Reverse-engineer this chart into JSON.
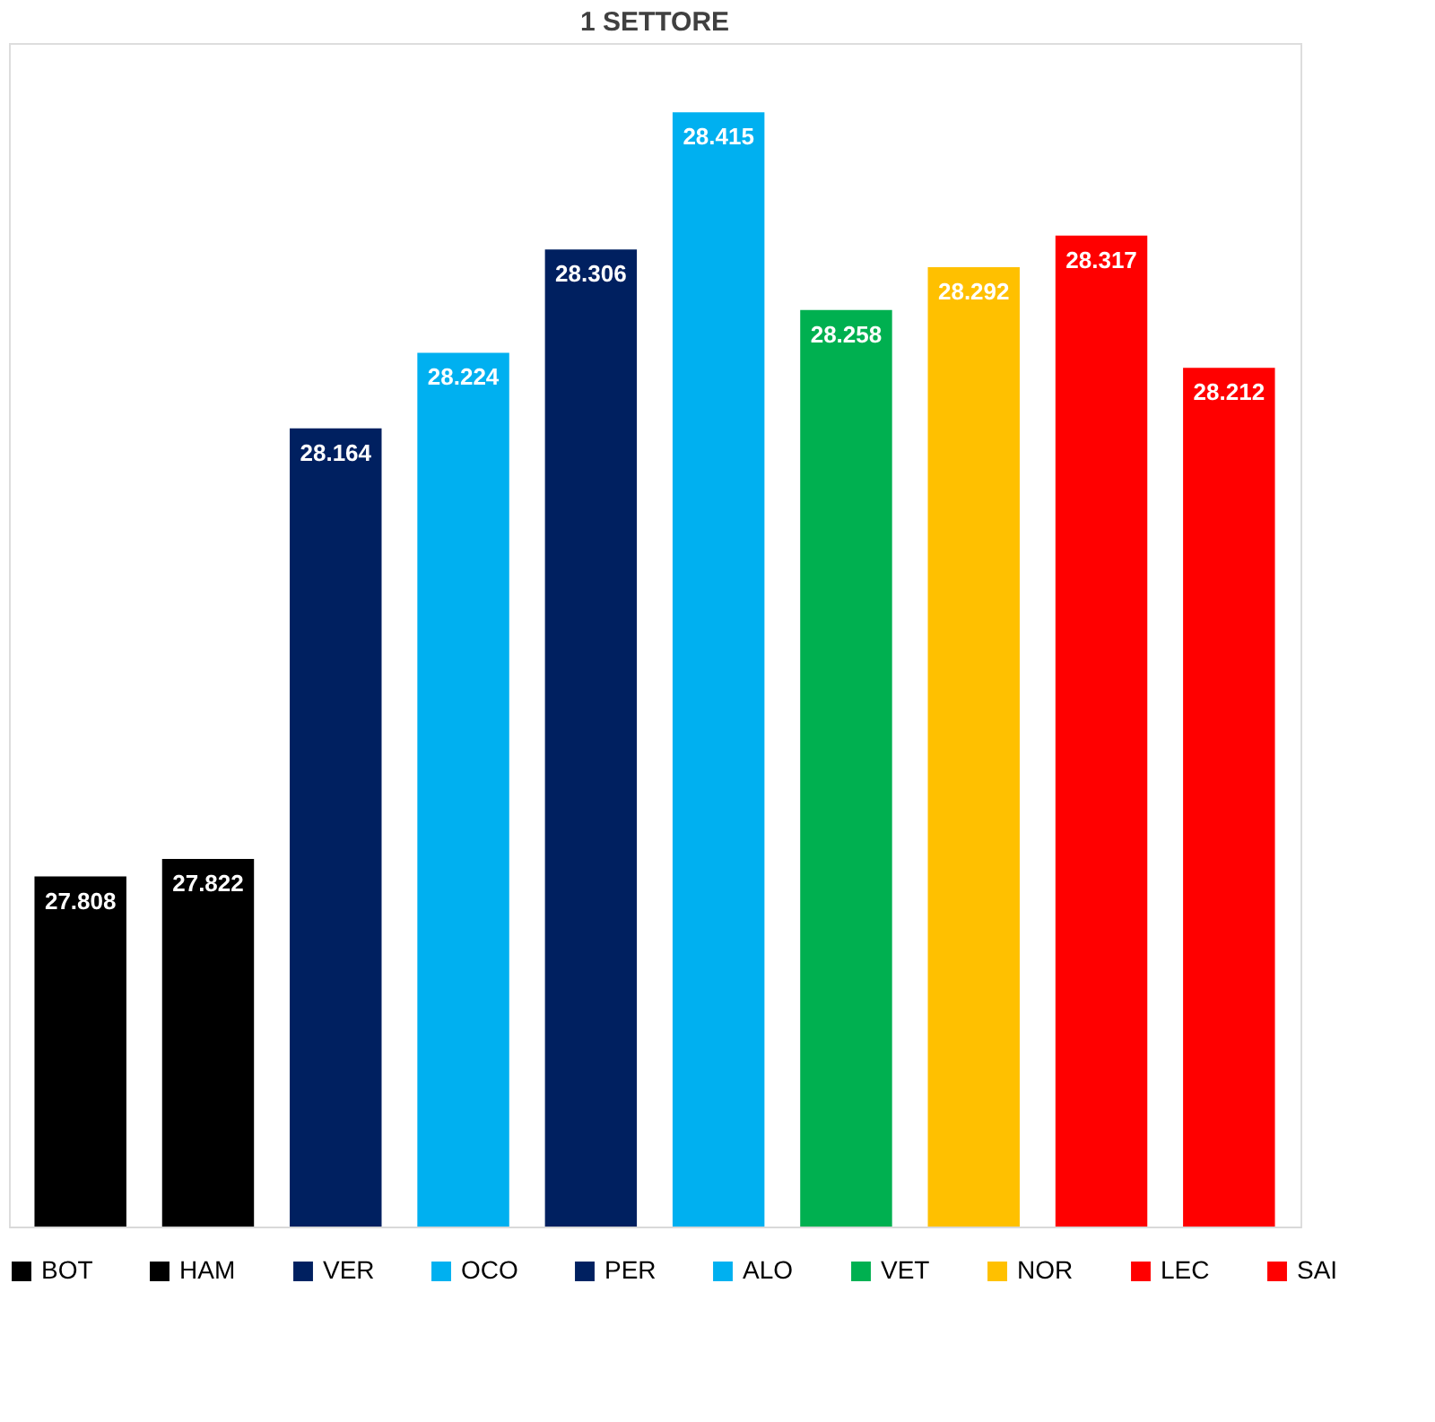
{
  "chart_data": {
    "type": "bar",
    "title": "1 SETTORE",
    "categories": [
      null,
      null,
      null,
      null,
      null,
      null,
      null,
      null,
      null,
      null
    ],
    "series": [
      {
        "name": "BOT",
        "color": "#000000",
        "values": [
          27.808,
          null,
          null,
          null,
          null,
          null,
          null,
          null,
          null,
          null
        ]
      },
      {
        "name": "HAM",
        "color": "#000000",
        "values": [
          null,
          27.822,
          null,
          null,
          null,
          null,
          null,
          null,
          null,
          null
        ]
      },
      {
        "name": "VER",
        "color": "#002060",
        "values": [
          null,
          null,
          28.164,
          null,
          null,
          null,
          null,
          null,
          null,
          null
        ]
      },
      {
        "name": "OCO",
        "color": "#00b0f0",
        "values": [
          null,
          null,
          null,
          28.224,
          null,
          null,
          null,
          null,
          null,
          null
        ]
      },
      {
        "name": "PER",
        "color": "#002060",
        "values": [
          null,
          null,
          null,
          null,
          28.306,
          null,
          null,
          null,
          null,
          null
        ]
      },
      {
        "name": "ALO",
        "color": "#00b0f0",
        "values": [
          null,
          null,
          null,
          null,
          null,
          28.415,
          null,
          null,
          null,
          null
        ]
      },
      {
        "name": "VET",
        "color": "#00b050",
        "values": [
          null,
          null,
          null,
          null,
          null,
          null,
          28.258,
          null,
          null,
          null
        ]
      },
      {
        "name": "NOR",
        "color": "#ffc000",
        "values": [
          null,
          null,
          null,
          null,
          null,
          null,
          null,
          28.292,
          null,
          null
        ]
      },
      {
        "name": "LEC",
        "color": "#ff0000",
        "values": [
          null,
          null,
          null,
          null,
          null,
          null,
          null,
          null,
          28.317,
          null
        ]
      },
      {
        "name": "SAI",
        "color": "#ff0000",
        "values": [
          null,
          null,
          null,
          null,
          null,
          null,
          null,
          null,
          null,
          28.212
        ]
      }
    ],
    "stacked": true,
    "ylim": [
      27.53,
      28.47
    ],
    "data_labels": true,
    "legend": "bottom",
    "tick_labels": false,
    "grid": false
  }
}
